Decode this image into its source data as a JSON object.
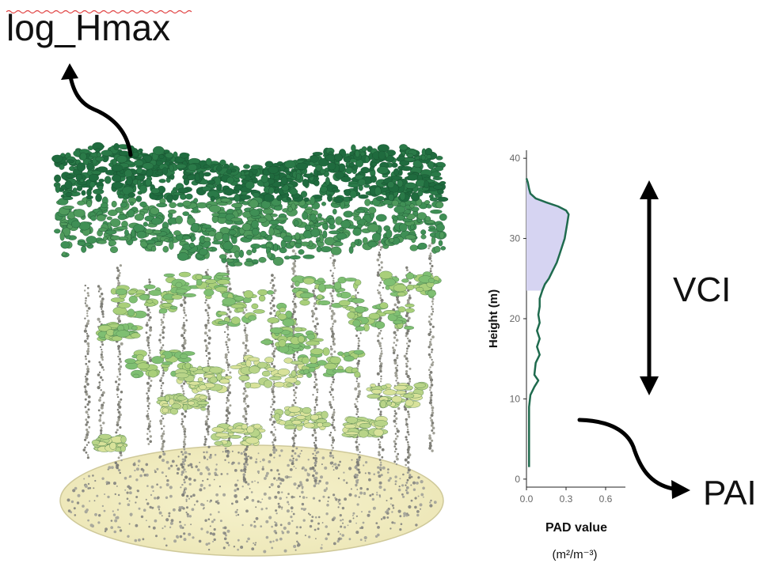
{
  "labels": {
    "log_hmax": "log_Hmax",
    "vci": "VCI",
    "pai": "PAI"
  },
  "colors": {
    "canopy_dark": "#1f6b3e",
    "canopy_mid": "#4f9a5c",
    "canopy_light": "#a9cf7a",
    "ground_fill": "#f4f0c4",
    "profile_fill": "#d6d4f2",
    "profile_line": "#1f6b4e",
    "arrow": "#000000"
  },
  "chart_data": {
    "type": "area",
    "xlabel": "PAD value",
    "xunit": "(m²/m⁻³)",
    "ylabel": "Height (m)",
    "x_ticks": [
      "0.0",
      "0.3",
      "0.6"
    ],
    "y_ticks": [
      "0",
      "10",
      "20",
      "30",
      "40"
    ],
    "xlim": [
      0,
      0.75
    ],
    "ylim": [
      -1,
      41
    ],
    "series": [
      {
        "points": [
          [
            0.02,
            1.5
          ],
          [
            0.02,
            3
          ],
          [
            0.02,
            5
          ],
          [
            0.02,
            7
          ],
          [
            0.02,
            9
          ],
          [
            0.03,
            10.5
          ],
          [
            0.06,
            11.5
          ],
          [
            0.09,
            12.3
          ],
          [
            0.06,
            13
          ],
          [
            0.07,
            14.5
          ],
          [
            0.1,
            15.5
          ],
          [
            0.08,
            16.5
          ],
          [
            0.1,
            17.5
          ],
          [
            0.08,
            18.5
          ],
          [
            0.1,
            19.5
          ],
          [
            0.09,
            20.5
          ],
          [
            0.1,
            21.5
          ],
          [
            0.1,
            22.5
          ],
          [
            0.12,
            23.5
          ],
          [
            0.14,
            24.3
          ],
          [
            0.17,
            25
          ],
          [
            0.2,
            26
          ],
          [
            0.23,
            27
          ],
          [
            0.25,
            28
          ],
          [
            0.27,
            29
          ],
          [
            0.29,
            30
          ],
          [
            0.3,
            31
          ],
          [
            0.31,
            32
          ],
          [
            0.32,
            33
          ],
          [
            0.3,
            33.5
          ],
          [
            0.24,
            34
          ],
          [
            0.15,
            34.5
          ],
          [
            0.07,
            35
          ],
          [
            0.03,
            35.6
          ],
          [
            0.02,
            36.2
          ],
          [
            0.01,
            37
          ],
          [
            0.0,
            37.5
          ]
        ]
      }
    ]
  }
}
